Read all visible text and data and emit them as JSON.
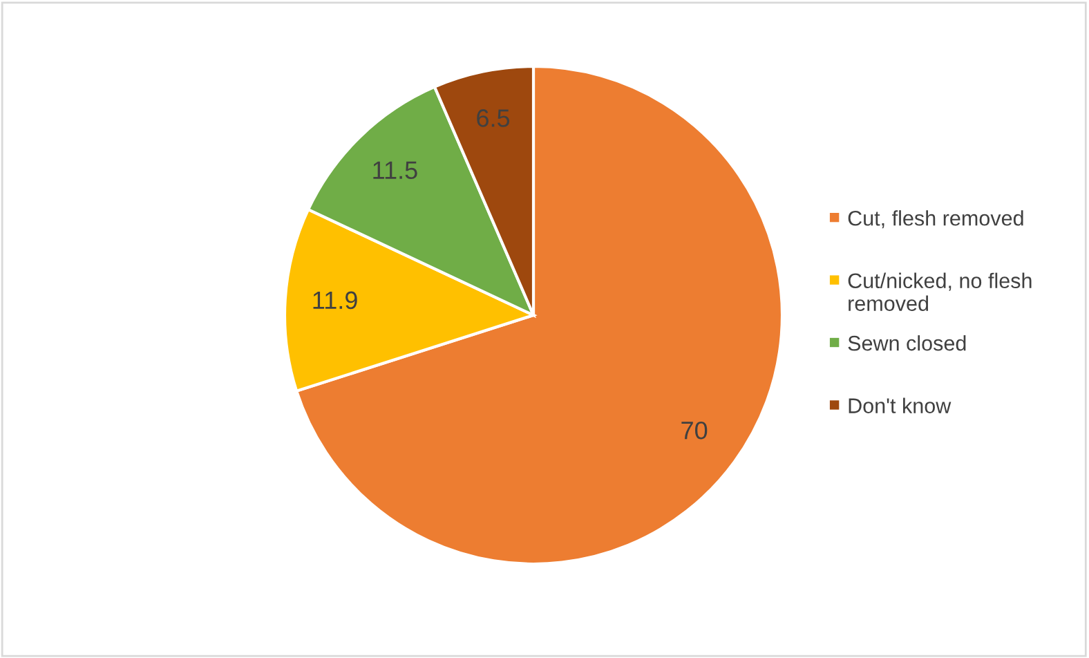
{
  "chart_data": {
    "type": "pie",
    "categories": [
      "Cut, flesh removed",
      "Cut/nicked, no flesh removed",
      "Sewn closed",
      "Don't know"
    ],
    "values": [
      70,
      11.9,
      11.5,
      6.5
    ],
    "colors": [
      "#ed7d31",
      "#ffc000",
      "#70ad47",
      "#9e480e"
    ],
    "data_labels": true,
    "legend": "right"
  }
}
